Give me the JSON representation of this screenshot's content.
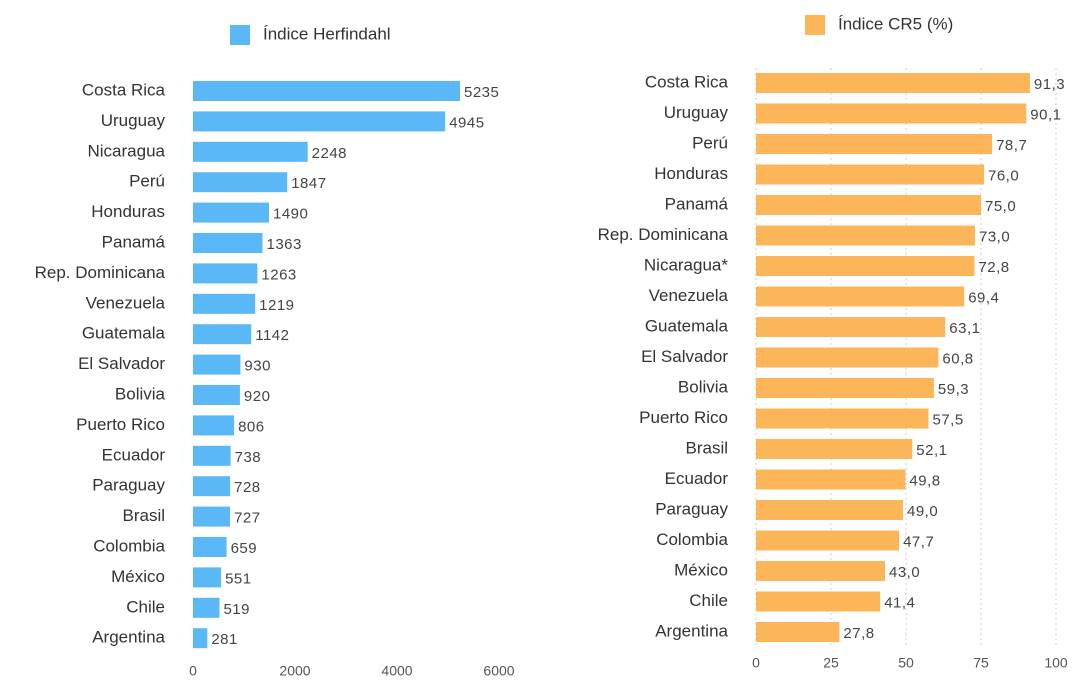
{
  "chart_data": [
    {
      "type": "bar",
      "orientation": "horizontal",
      "categories": [
        "Costa Rica",
        "Uruguay",
        "Nicaragua",
        "Perú",
        "Honduras",
        "Panamá",
        "Rep. Dominicana",
        "Venezuela",
        "Guatemala",
        "El Salvador",
        "Bolivia",
        "Puerto Rico",
        "Ecuador",
        "Paraguay",
        "Brasil",
        "Colombia",
        "México",
        "Chile",
        "Argentina"
      ],
      "series": [
        {
          "name": "Índice Herfindahl",
          "color": "#5ab8f6",
          "values": [
            5235,
            4945,
            2248,
            1847,
            1490,
            1363,
            1263,
            1219,
            1142,
            930,
            920,
            806,
            738,
            728,
            727,
            659,
            551,
            519,
            281
          ]
        }
      ],
      "xlim": [
        0,
        6000
      ],
      "xticks": [
        0,
        2000,
        4000,
        6000
      ],
      "grid": false
    },
    {
      "type": "bar",
      "orientation": "horizontal",
      "categories": [
        "Costa Rica",
        "Uruguay",
        "Perú",
        "Honduras",
        "Panamá",
        "Rep. Dominicana",
        "Nicaragua*",
        "Venezuela",
        "Guatemala",
        "El Salvador",
        "Bolivia",
        "Puerto Rico",
        "Brasil",
        "Ecuador",
        "Paraguay",
        "Colombia",
        "México",
        "Chile",
        "Argentina"
      ],
      "series": [
        {
          "name": "Índice CR5 (%)",
          "color": "#fdb55a",
          "values": [
            91.3,
            90.1,
            78.7,
            76.0,
            75.0,
            73.0,
            72.8,
            69.4,
            63.1,
            60.8,
            59.3,
            57.5,
            52.1,
            49.8,
            49.0,
            47.7,
            43.0,
            41.4,
            27.8
          ],
          "value_labels": [
            "91,3",
            "90,1",
            "78,7",
            "76,0",
            "75,0",
            "73,0",
            "72,8",
            "69,4",
            "63,1",
            "60,8",
            "59,3",
            "57,5",
            "52,1",
            "49,8",
            "49,0",
            "47,7",
            "43,0",
            "41,4",
            "27,8"
          ]
        }
      ],
      "xlim": [
        0,
        100
      ],
      "xticks": [
        0,
        25,
        50,
        75,
        100
      ],
      "grid": true
    }
  ]
}
